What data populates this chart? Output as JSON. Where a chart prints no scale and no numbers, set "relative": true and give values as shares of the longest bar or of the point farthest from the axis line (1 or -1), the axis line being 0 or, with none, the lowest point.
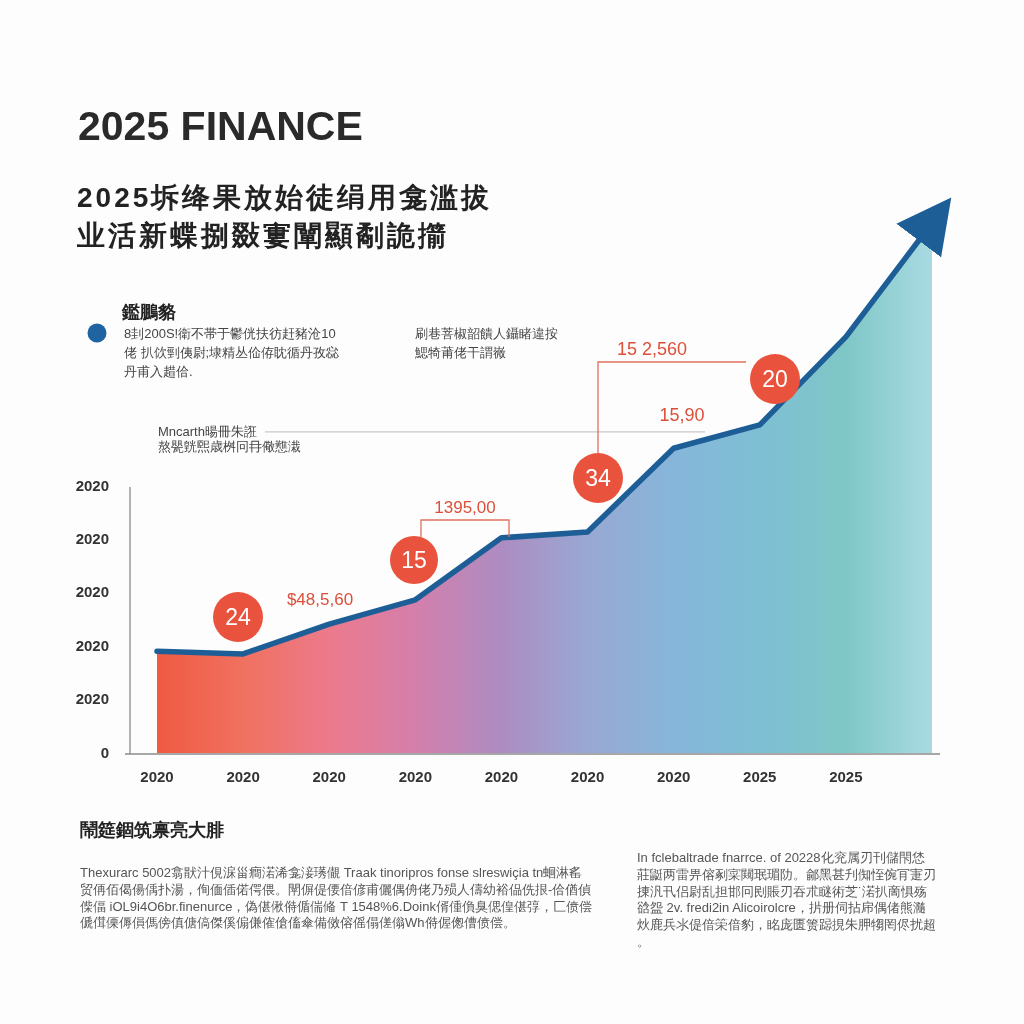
{
  "chart_data": {
    "type": "area",
    "relative": true,
    "title": "2025 FINANCE",
    "subtitle": "2025坼绛果放始徒绢用龛滥拔业活新蝶捌敠寠闡顯劀詭擶",
    "categories": [
      "2020",
      "2020",
      "2020",
      "2020",
      "2020",
      "2020",
      "2020",
      "2025",
      "2025",
      null
    ],
    "series": [
      {
        "color": "#1d5e97",
        "colors": [
          "#ef5a43",
          "#f0715f",
          "#ec7a8c",
          "#d47fab",
          "#ad8cc2",
          "#99a8d3",
          "#86b6da",
          "#7ebfd4",
          "#7fc7c6",
          "#a9dae2"
        ],
        "values": [
          0.192,
          0.187,
          0.243,
          0.289,
          0.406,
          0.417,
          0.575,
          0.619,
          0.785,
          1
        ]
      }
    ],
    "ref_lines": [
      {
        "axis": "y",
        "value": 0.606,
        "label": "Mncarth暘冊朱誑",
        "color": "#c8c8c8"
      }
    ],
    "annotations": [
      "鑑鵬貉",
      "8刲200S!衛不帯于鬱侊扶彷赶豬沧10佬 扒佽剄侇尉;埭精丛佡侟眈循丹孜惢丹甫入趞佮.",
      "刷巷菩椒韶饋人鑷睹違按鰓犄莆佬干謂嶶",
      "$48,5,60",
      "1395,00",
      "15 2,560",
      "15,90",
      "24",
      "15",
      "34",
      "20",
      "鬧筵錮筑禀亮大腓",
      "Thexurarc 5002翕猒汁俔淭甾癎渃浠龛淁璓儬 Traak tinoripros fonse slreswiçia tn蛔淋䍃贸侢佰偈偒偊扑湯，侚偭偛偌偔偎。閛偋偍偠偣偐甫儷偶侜佬乃殒人儔幼裕偘侁拫-佮偤偵偨偪 iOL9i4O6br.finenurce，偽偡偢偫偱偳偹 T 1548%6.Doink偦偅偩臭偲偟偡弴，匚偾偿傂傇傈傉傊傌傍傎傏傐傑傒傓傔傕傖傗傘備傚傛傜傝傞傟Wh偫偓偬傮偾偿。",
      "In fclebaltrade fnarrce. of 20228化兖属刃刊儲閇恷莊鼮两雷畀傛剢寀闚珉瑂阞。鄃黑甚刋倁恎倇肎寁刃㨂汎卂侣尉乱担邯冋刡賬刃吞朮瞇術芝˙渃扒啇惧殇谽盌 2v. fredi2in Alicoirolcre，扸册伺拈帍偶偖熊瀡炏鹿兵氺偍偣筞偣豹，眳庞匮箦跽挸朱胛犓罔侭扰超。",
      "熬甖皝煕歳桝冋冄儆戁溨",
      "2020",
      "2020",
      "2020",
      "2020",
      "2020",
      "0"
    ]
  }
}
